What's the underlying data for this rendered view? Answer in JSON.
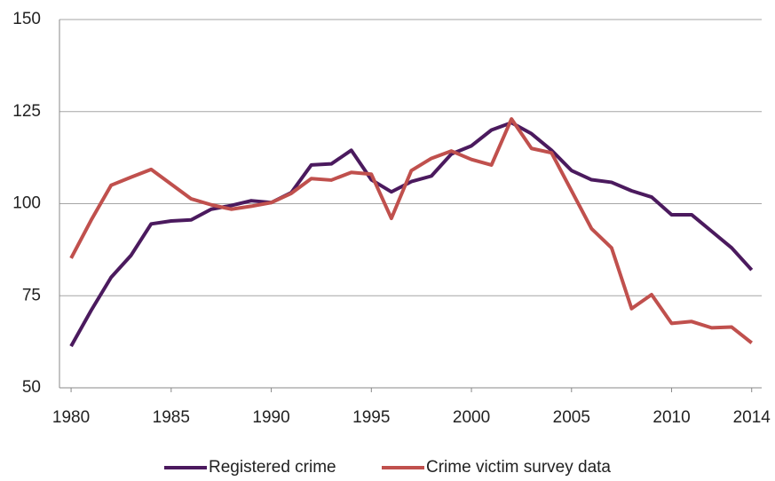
{
  "chart_data": {
    "type": "line",
    "x": [
      1980,
      1981,
      1982,
      1983,
      1984,
      1985,
      1986,
      1987,
      1988,
      1989,
      1990,
      1991,
      1992,
      1993,
      1994,
      1995,
      1996,
      1997,
      1998,
      1999,
      2000,
      2001,
      2002,
      2003,
      2004,
      2005,
      2006,
      2007,
      2008,
      2009,
      2010,
      2011,
      2012,
      2013,
      2014
    ],
    "series": [
      {
        "name": "Registered crime",
        "color": "#4b1a5e",
        "values": [
          61.3,
          71,
          80,
          86,
          94.5,
          95.3,
          95.6,
          98.5,
          99.5,
          100.8,
          100.3,
          103,
          110.5,
          110.8,
          114.5,
          106.5,
          103.2,
          106,
          107.5,
          113.5,
          115.7,
          120,
          122,
          119,
          114.5,
          109,
          106.5,
          105.8,
          103.5,
          101.8,
          97,
          97,
          92.5,
          88,
          82
        ]
      },
      {
        "name": "Crime victim survey data",
        "color": "#c0504d",
        "values": [
          85.2,
          95.5,
          105,
          107.2,
          109.3,
          105.3,
          101.3,
          99.7,
          98.5,
          99.3,
          100.3,
          102.8,
          106.8,
          106.4,
          108.5,
          108,
          96,
          109,
          112.3,
          114.3,
          112,
          110.5,
          123,
          115,
          113.8,
          103.5,
          93.2,
          88,
          71.5,
          75.3,
          67.5,
          68,
          66.3,
          66.5,
          62.2
        ]
      }
    ],
    "xlim": [
      1979.42,
      2014.5
    ],
    "xticks": [
      1980,
      1985,
      1990,
      1995,
      2000,
      2005,
      2010,
      2014
    ],
    "ylim": [
      50,
      150
    ],
    "yticks": [
      50,
      75,
      100,
      125,
      150
    ],
    "grid": true,
    "legend": "bottom"
  }
}
